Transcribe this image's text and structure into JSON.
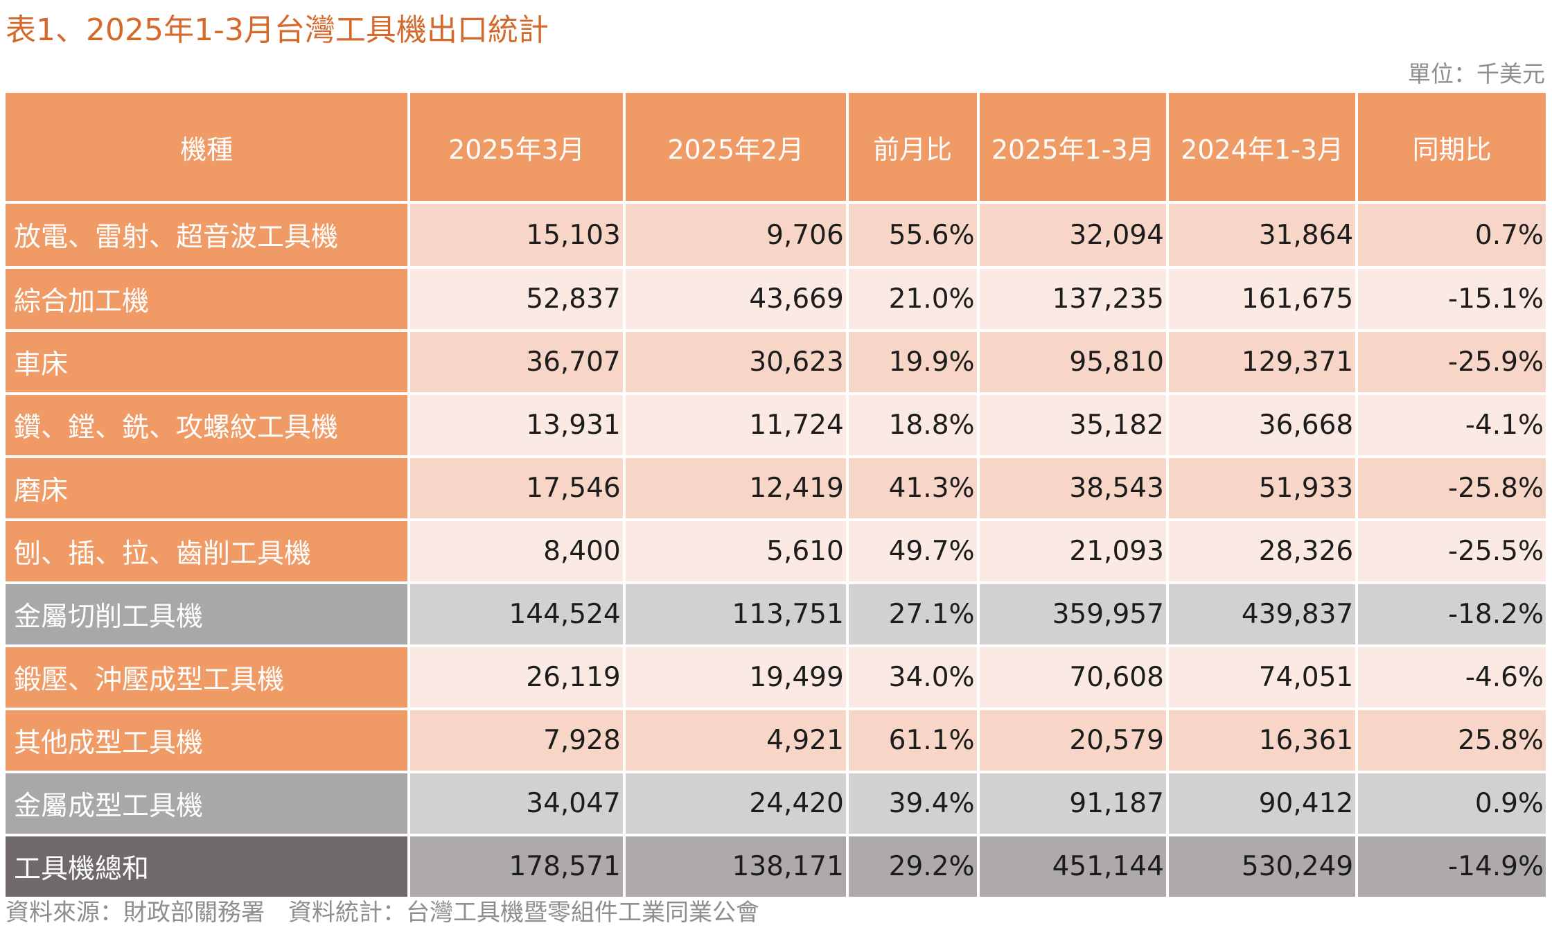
{
  "title": "表1、2025年1-3月台灣工具機出口統計",
  "unit": "單位：千美元",
  "headers": [
    "機種",
    "2025年3月",
    "2025年2月",
    "前月比",
    "2025年1-3月",
    "2024年1-3月",
    "同期比"
  ],
  "rows": [
    {
      "type": "item",
      "cells": [
        "放電、雷射、超音波工具機",
        "15,103",
        "9,706",
        "55.6%",
        "32,094",
        "31,864",
        "0.7%"
      ]
    },
    {
      "type": "item",
      "cells": [
        "綜合加工機",
        "52,837",
        "43,669",
        "21.0%",
        "137,235",
        "161,675",
        "-15.1%"
      ]
    },
    {
      "type": "item",
      "cells": [
        "車床",
        "36,707",
        "30,623",
        "19.9%",
        "95,810",
        "129,371",
        "-25.9%"
      ]
    },
    {
      "type": "item",
      "cells": [
        "鑽、鏜、銑、攻螺紋工具機",
        "13,931",
        "11,724",
        "18.8%",
        "35,182",
        "36,668",
        "-4.1%"
      ]
    },
    {
      "type": "item",
      "cells": [
        "磨床",
        "17,546",
        "12,419",
        "41.3%",
        "38,543",
        "51,933",
        "-25.8%"
      ]
    },
    {
      "type": "item",
      "cells": [
        "刨、插、拉、齒削工具機",
        "8,400",
        "5,610",
        "49.7%",
        "21,093",
        "28,326",
        "-25.5%"
      ]
    },
    {
      "type": "subtotal",
      "cells": [
        "金屬切削工具機",
        "144,524",
        "113,751",
        "27.1%",
        "359,957",
        "439,837",
        "-18.2%"
      ]
    },
    {
      "type": "item",
      "cells": [
        "鍛壓、沖壓成型工具機",
        "26,119",
        "19,499",
        "34.0%",
        "70,608",
        "74,051",
        "-4.6%"
      ]
    },
    {
      "type": "item",
      "cells": [
        "其他成型工具機",
        "7,928",
        "4,921",
        "61.1%",
        "20,579",
        "16,361",
        "25.8%"
      ]
    },
    {
      "type": "subtotal",
      "cells": [
        "金屬成型工具機",
        "34,047",
        "24,420",
        "39.4%",
        "91,187",
        "90,412",
        "0.9%"
      ]
    },
    {
      "type": "total",
      "cells": [
        "工具機總和",
        "178,571",
        "138,171",
        "29.2%",
        "451,144",
        "530,249",
        "-14.9%"
      ]
    }
  ],
  "source": "資料來源：財政部關務署　資料統計：台灣工具機暨零組件工業同業公會",
  "colors": {
    "title": "#d4692b",
    "header": "#f09a66",
    "subtotal": "#a9a7a7",
    "total": "#6f6969"
  }
}
